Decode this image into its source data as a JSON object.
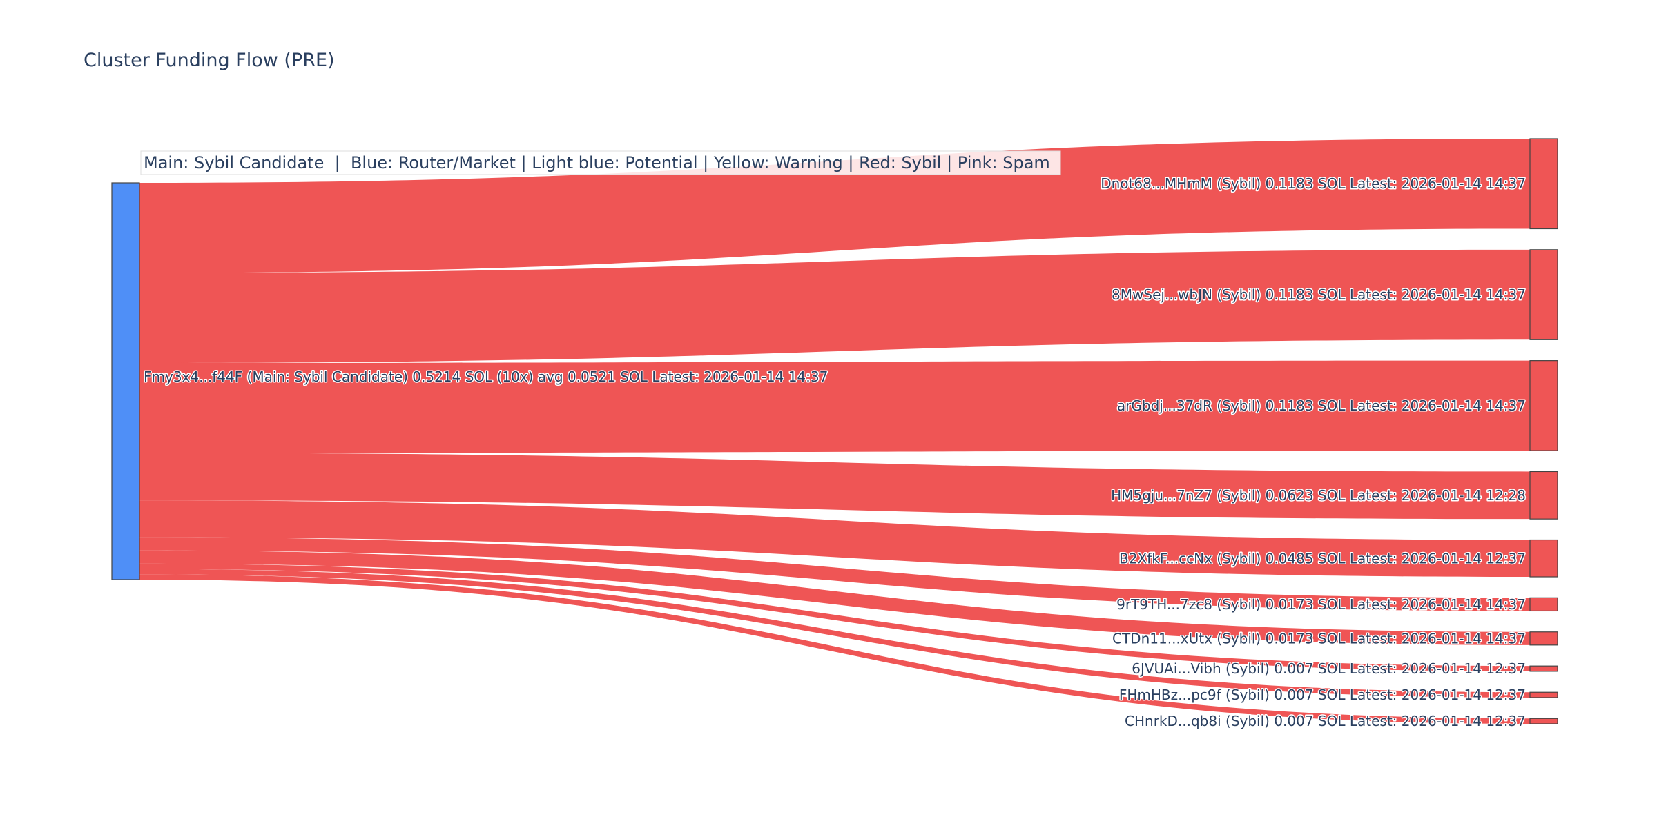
{
  "title": "Cluster Funding Flow (PRE)",
  "legend_text": "Main: Sybil Candidate  |  Blue: Router/Market | Light blue: Potential | Yellow: Warning | Red: Sybil | Pink: Spam",
  "colors": {
    "source_node": "#4f8ff7",
    "target_node": "#ef5555",
    "link": "#ef5555",
    "node_border": "#444444",
    "text": "#2a3f5f"
  },
  "chart_data": {
    "type": "sankey",
    "title": "Cluster Funding Flow (PRE)",
    "source": {
      "label": "Fmy3x4...f44F (Main: Sybil Candidate) 0.5214 SOL (10x) avg 0.0521 SOL Latest: 2026-01-14 14:37",
      "value": 0.5214
    },
    "targets": [
      {
        "label": "Dnot68...MHmM (Sybil) 0.1183 SOL Latest: 2026-01-14 14:37",
        "value": 0.1183
      },
      {
        "label": "8MwSej...wbJN (Sybil) 0.1183 SOL Latest: 2026-01-14 14:37",
        "value": 0.1183
      },
      {
        "label": "arGbdj...37dR (Sybil) 0.1183 SOL Latest: 2026-01-14 14:37",
        "value": 0.1183
      },
      {
        "label": "HM5gju...7nZ7 (Sybil) 0.0623 SOL Latest: 2026-01-14 12:28",
        "value": 0.0623
      },
      {
        "label": "B2XfkF...ccNx (Sybil) 0.0485 SOL Latest: 2026-01-14 12:37",
        "value": 0.0485
      },
      {
        "label": "9rT9TH...7zc8 (Sybil) 0.0173 SOL Latest: 2026-01-14 14:37",
        "value": 0.0173
      },
      {
        "label": "CTDn11...xUtx (Sybil) 0.0173 SOL Latest: 2026-01-14 14:37",
        "value": 0.0173
      },
      {
        "label": "6JVUAi...Vibh (Sybil) 0.007 SOL Latest: 2026-01-14 12:37",
        "value": 0.007
      },
      {
        "label": "FHmHBz...pc9f (Sybil) 0.007 SOL Latest: 2026-01-14 12:37",
        "value": 0.007
      },
      {
        "label": "CHnrkD...qb8i (Sybil) 0.007 SOL Latest: 2026-01-14 12:37",
        "value": 0.007
      }
    ]
  }
}
